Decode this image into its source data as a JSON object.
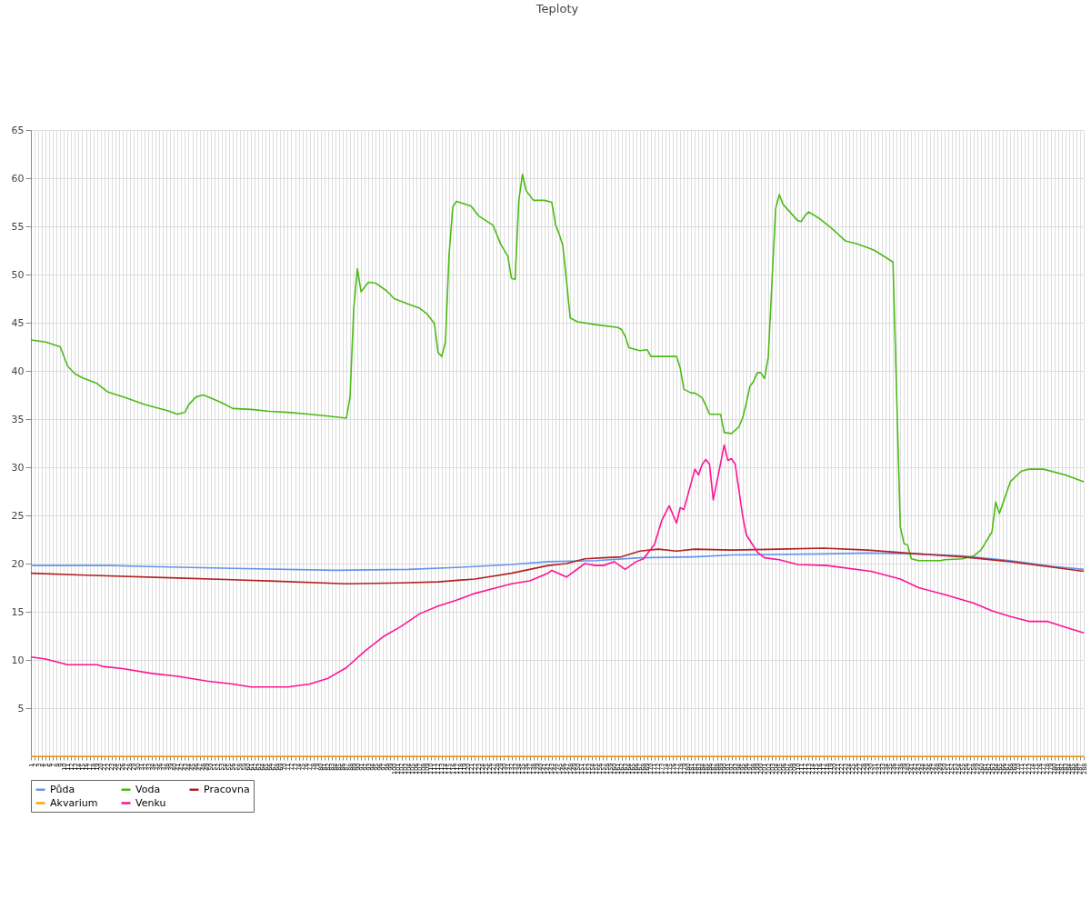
{
  "chart_data": {
    "type": "line",
    "title": "Teploty",
    "legend": "bottom",
    "grid": true,
    "marker": "none",
    "xlim": [
      1,
      288
    ],
    "xticks": [
      1,
      2,
      3,
      4,
      5,
      6,
      7,
      8,
      9,
      10,
      11,
      12,
      13,
      14,
      15,
      16,
      17,
      18,
      19,
      20,
      21,
      22,
      23,
      24,
      25,
      26,
      27,
      28,
      29,
      30,
      31,
      32,
      33,
      34,
      35,
      36,
      37,
      38,
      39,
      40,
      41,
      42,
      43,
      44,
      45,
      46,
      47,
      48,
      49,
      50,
      51,
      52,
      53,
      54,
      55,
      56,
      57,
      58,
      59,
      60,
      61,
      62,
      63,
      64,
      65,
      66,
      67,
      68,
      69,
      70,
      71,
      72,
      73,
      74,
      75,
      76,
      77,
      78,
      79,
      80,
      81,
      82,
      83,
      84,
      85,
      86,
      87,
      88,
      89,
      90,
      91,
      92,
      93,
      94,
      95,
      96,
      97,
      98,
      99,
      100,
      101,
      102,
      103,
      104,
      105,
      106,
      107,
      108,
      109,
      110,
      111,
      112,
      113,
      114,
      115,
      116,
      117,
      118,
      119,
      120,
      121,
      122,
      123,
      124,
      125,
      126,
      127,
      128,
      129,
      130,
      131,
      132,
      133,
      134,
      135,
      136,
      137,
      138,
      139,
      140,
      141,
      142,
      143,
      144,
      145,
      146,
      147,
      148,
      149,
      150,
      151,
      152,
      153,
      154,
      155,
      156,
      157,
      158,
      159,
      160,
      161,
      162,
      163,
      164,
      165,
      166,
      167,
      168,
      169,
      170,
      171,
      172,
      173,
      174,
      175,
      176,
      177,
      178,
      179,
      180,
      181,
      182,
      183,
      184,
      185,
      186,
      187,
      188,
      189,
      190,
      191,
      192,
      193,
      194,
      195,
      196,
      197,
      198,
      199,
      200,
      201,
      202,
      203,
      204,
      205,
      206,
      207,
      208,
      209,
      210,
      211,
      212,
      213,
      214,
      215,
      216,
      217,
      218,
      219,
      220,
      221,
      222,
      223,
      224,
      225,
      226,
      227,
      228,
      229,
      230,
      231,
      232,
      233,
      234,
      235,
      236,
      237,
      238,
      239,
      240,
      241,
      242,
      243,
      244,
      245,
      246,
      247,
      248,
      249,
      250,
      251,
      252,
      253,
      254,
      255,
      256,
      257,
      258,
      259,
      260,
      261,
      262,
      263,
      264,
      265,
      266,
      267,
      268,
      269,
      270,
      271,
      272,
      273,
      274,
      275,
      276,
      277,
      278,
      279,
      280,
      281,
      282,
      283,
      284,
      285,
      286,
      287,
      288
    ],
    "ylim": [
      0,
      65
    ],
    "yticks": [
      5,
      10,
      15,
      20,
      25,
      30,
      35,
      40,
      45,
      50,
      55,
      60,
      65
    ],
    "series": [
      {
        "name": "Půda",
        "color": "#6495ed",
        "x": [
          1,
          23,
          33,
          56,
          84,
          104,
          117,
          132,
          142,
          155,
          167,
          182,
          192,
          217,
          229,
          243,
          255,
          268,
          280,
          288
        ],
        "values": [
          19.8,
          19.8,
          19.7,
          19.5,
          19.3,
          19.4,
          19.6,
          19.9,
          20.2,
          20.3,
          20.6,
          20.7,
          20.9,
          21.0,
          21.1,
          21.0,
          20.8,
          20.3,
          19.7,
          19.4
        ]
      },
      {
        "name": "Voda",
        "color": "#4cbb17",
        "x": [
          1,
          5,
          9,
          11,
          13,
          15,
          19,
          22,
          27,
          32,
          38,
          41,
          43,
          44,
          46,
          48,
          50,
          53,
          56,
          61,
          66,
          71,
          77,
          82,
          87,
          88,
          89,
          90,
          91,
          93,
          95,
          98,
          100,
          104,
          107,
          109,
          111,
          112,
          113,
          114,
          115,
          116,
          117,
          121,
          123,
          127,
          129,
          131,
          132,
          133,
          134,
          135,
          136,
          138,
          141,
          143,
          144,
          145,
          146,
          147,
          148,
          150,
          155,
          161,
          162,
          163,
          164,
          167,
          169,
          170,
          175,
          177,
          178,
          179,
          181,
          182,
          184,
          185,
          186,
          189,
          190,
          192,
          194,
          195,
          196,
          197,
          198,
          199,
          200,
          201,
          202,
          204,
          205,
          206,
          210,
          211,
          212,
          213,
          216,
          219,
          221,
          223,
          226,
          229,
          231,
          236,
          238,
          239,
          240,
          241,
          243,
          249,
          250,
          255,
          258,
          260,
          263,
          264,
          265,
          268,
          271,
          273,
          277,
          283,
          288
        ],
        "values": [
          43.2,
          43.0,
          42.5,
          40.5,
          39.7,
          39.3,
          38.7,
          37.8,
          37.2,
          36.5,
          35.9,
          35.5,
          35.7,
          36.5,
          37.3,
          37.5,
          37.2,
          36.7,
          36.1,
          36.0,
          35.8,
          35.7,
          35.5,
          35.3,
          35.1,
          37.3,
          46.4,
          50.6,
          48.2,
          49.2,
          49.1,
          48.3,
          47.5,
          46.9,
          46.5,
          45.9,
          44.9,
          41.9,
          41.5,
          43.0,
          52.1,
          57.0,
          57.6,
          57.1,
          56.1,
          55.1,
          53.2,
          51.9,
          49.6,
          49.5,
          57.7,
          60.4,
          58.7,
          57.7,
          57.7,
          57.5,
          55.2,
          54.2,
          53.0,
          49.4,
          45.5,
          45.1,
          44.8,
          44.5,
          44.3,
          43.6,
          42.4,
          42.1,
          42.2,
          41.5,
          41.5,
          41.5,
          40.3,
          38.1,
          37.7,
          37.7,
          37.2,
          36.4,
          35.5,
          35.5,
          33.6,
          33.5,
          34.2,
          35.1,
          36.6,
          38.4,
          38.9,
          39.8,
          39.8,
          39.2,
          41.4,
          56.8,
          58.3,
          57.3,
          55.6,
          55.5,
          56.1,
          56.5,
          55.8,
          54.9,
          54.2,
          53.5,
          53.2,
          52.8,
          52.5,
          51.3,
          23.8,
          22.1,
          21.9,
          20.5,
          20.3,
          20.3,
          20.4,
          20.5,
          20.8,
          21.4,
          23.3,
          26.4,
          25.2,
          28.5,
          29.6,
          29.8,
          29.8,
          29.2,
          28.5
        ]
      },
      {
        "name": "Pracovna",
        "color": "#b22222",
        "x": [
          1,
          16,
          41,
          66,
          87,
          102,
          112,
          122,
          132,
          142,
          147,
          152,
          157,
          162,
          167,
          172,
          177,
          182,
          192,
          205,
          217,
          229,
          243,
          255,
          268,
          280,
          288
        ],
        "values": [
          19.0,
          18.8,
          18.5,
          18.2,
          17.9,
          18.0,
          18.1,
          18.4,
          19.0,
          19.8,
          20.0,
          20.5,
          20.6,
          20.7,
          21.3,
          21.5,
          21.3,
          21.5,
          21.4,
          21.5,
          21.6,
          21.4,
          21.0,
          20.7,
          20.2,
          19.6,
          19.2
        ]
      },
      {
        "name": "Akvarium",
        "color": "#ffa500",
        "x": [
          1,
          288
        ],
        "values": [
          0,
          0
        ]
      },
      {
        "name": "Venku",
        "color": "#ff1493",
        "x": [
          1,
          5,
          11,
          19,
          21,
          26,
          34,
          41,
          49,
          56,
          61,
          71,
          77,
          82,
          87,
          92,
          97,
          102,
          107,
          112,
          117,
          122,
          127,
          132,
          137,
          142,
          143,
          147,
          152,
          155,
          157,
          160,
          163,
          166,
          168,
          171,
          173,
          175,
          177,
          178,
          179,
          182,
          183,
          184,
          185,
          186,
          187,
          190,
          191,
          192,
          193,
          195,
          196,
          199,
          201,
          205,
          210,
          218,
          230,
          238,
          243,
          250,
          258,
          263,
          268,
          273,
          278,
          283,
          288
        ],
        "values": [
          10.3,
          10.1,
          9.5,
          9.5,
          9.3,
          9.1,
          8.6,
          8.3,
          7.8,
          7.5,
          7.2,
          7.2,
          7.5,
          8.1,
          9.2,
          10.9,
          12.4,
          13.5,
          14.8,
          15.6,
          16.2,
          16.9,
          17.4,
          17.9,
          18.2,
          19.0,
          19.3,
          18.6,
          20.0,
          19.8,
          19.8,
          20.2,
          19.4,
          20.2,
          20.5,
          22.0,
          24.5,
          26.0,
          24.2,
          25.8,
          25.6,
          29.8,
          29.2,
          30.3,
          30.8,
          30.3,
          26.6,
          32.3,
          30.7,
          30.9,
          30.3,
          25.0,
          23.0,
          21.2,
          20.6,
          20.4,
          19.9,
          19.8,
          19.2,
          18.4,
          17.5,
          16.8,
          15.9,
          15.1,
          14.5,
          14.0,
          14.0,
          13.4,
          12.8
        ]
      }
    ]
  }
}
